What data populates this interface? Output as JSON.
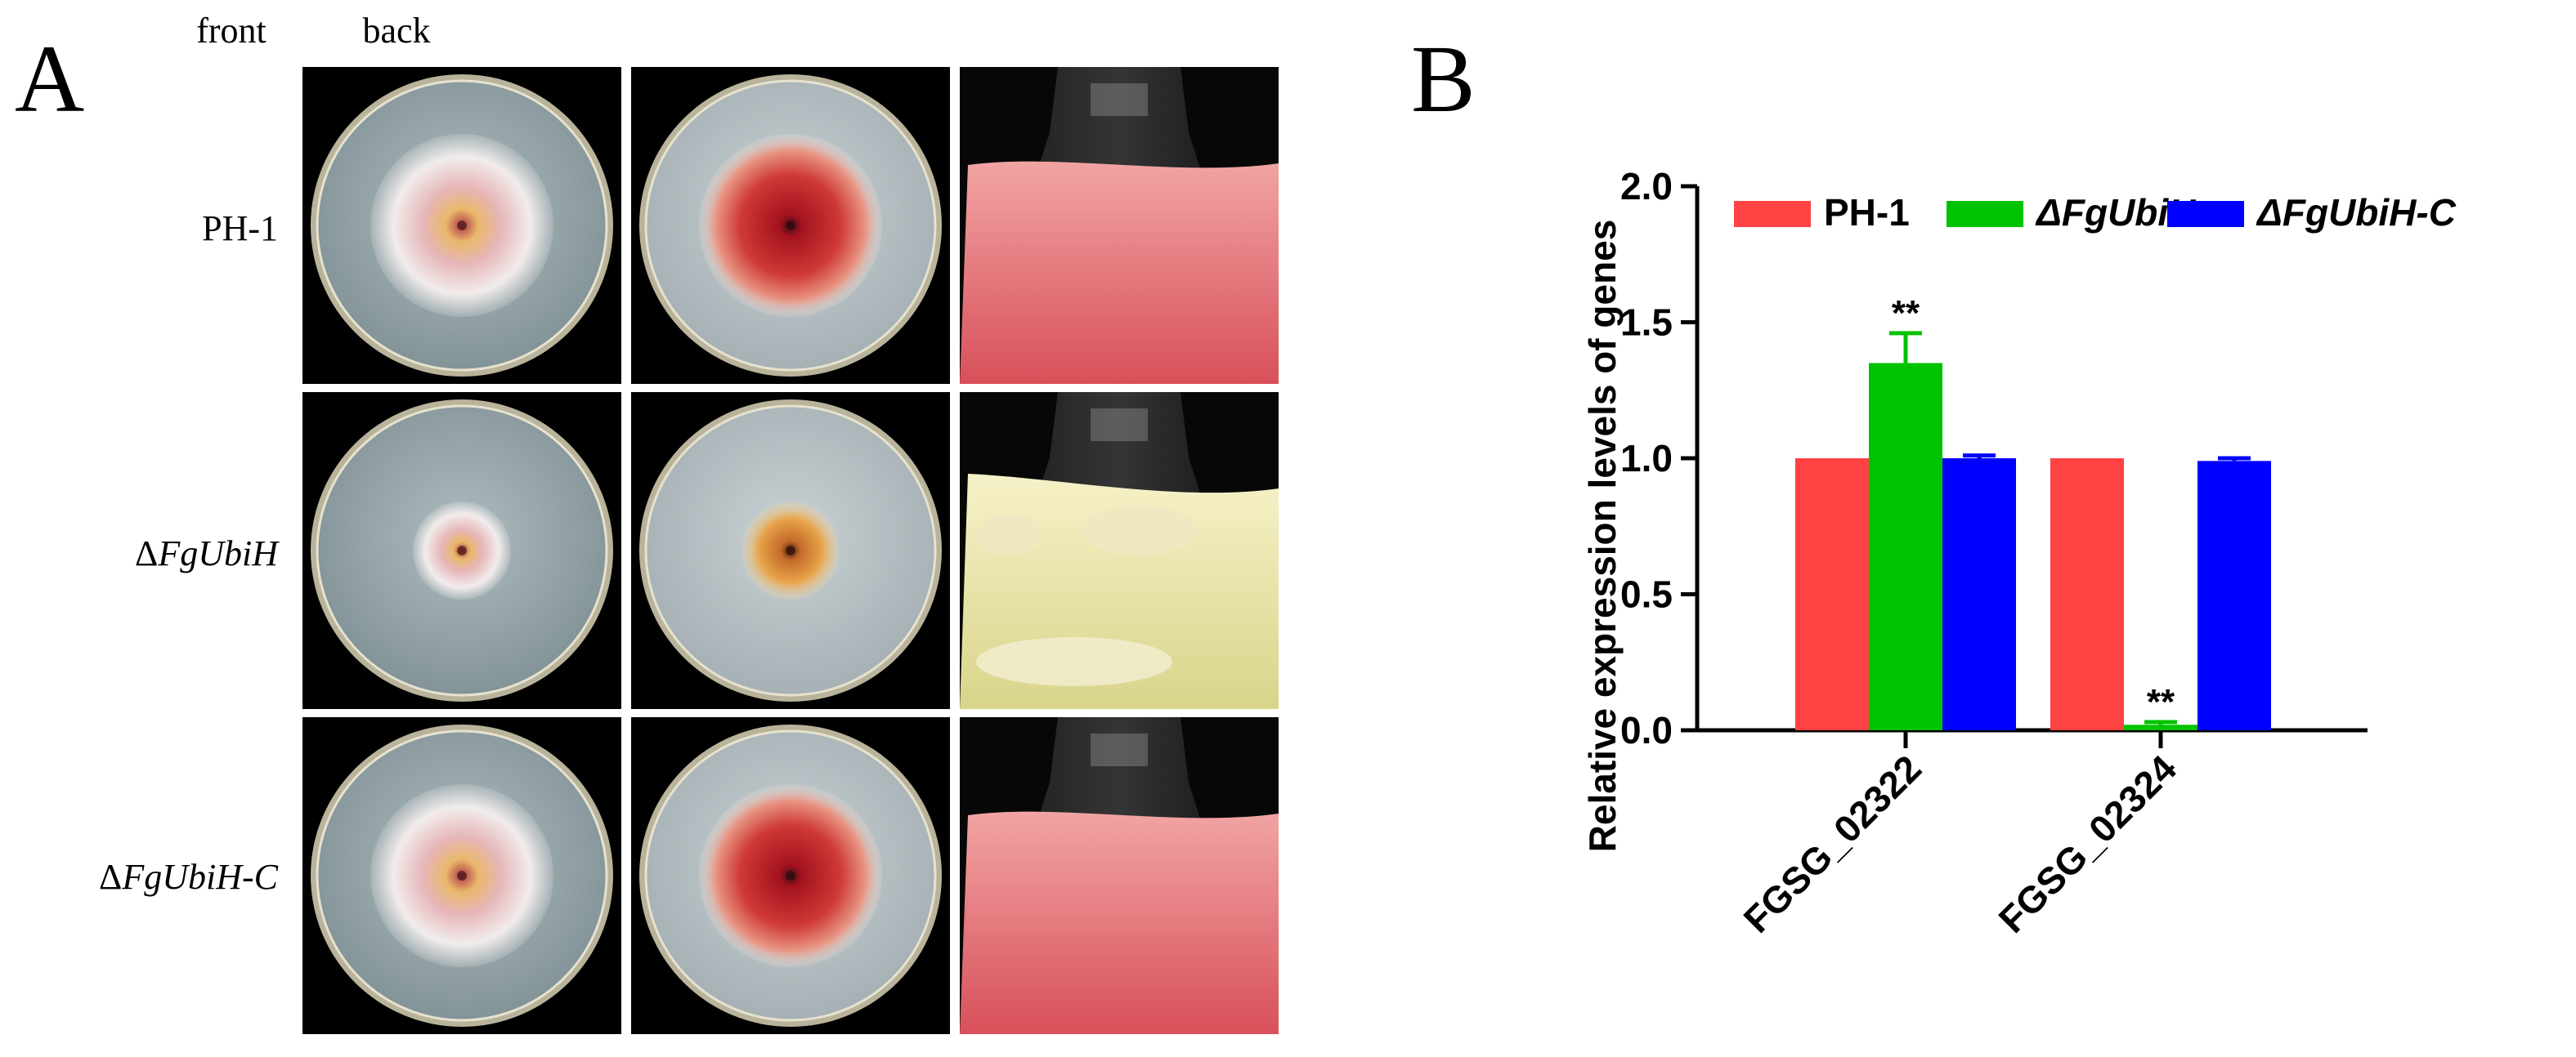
{
  "panelA": {
    "letter": "A",
    "columns": [
      "front",
      "back"
    ],
    "rows": [
      {
        "prefix": "",
        "italic": "",
        "plain": "PH-1"
      },
      {
        "prefix": "Δ",
        "italic": "FgUbiH",
        "plain": ""
      },
      {
        "prefix": "Δ",
        "italic": "FgUbiH-C",
        "plain": ""
      }
    ],
    "photos": [
      {
        "row": 0,
        "kind": "plate-front",
        "growth": "large"
      },
      {
        "row": 0,
        "kind": "plate-back",
        "growth": "large"
      },
      {
        "row": 0,
        "kind": "flask",
        "culture": "red"
      },
      {
        "row": 1,
        "kind": "plate-front",
        "growth": "small"
      },
      {
        "row": 1,
        "kind": "plate-back",
        "growth": "small"
      },
      {
        "row": 1,
        "kind": "flask",
        "culture": "pale-yellow"
      },
      {
        "row": 2,
        "kind": "plate-front",
        "growth": "large"
      },
      {
        "row": 2,
        "kind": "plate-back",
        "growth": "large"
      },
      {
        "row": 2,
        "kind": "flask",
        "culture": "red"
      }
    ]
  },
  "panelB": {
    "letter": "B"
  },
  "chart_data": {
    "type": "bar",
    "ylabel": "Relative expression levels of genes",
    "xlabel": "",
    "categories": [
      "FGSG_02322",
      "FGSG_02324"
    ],
    "ylim": [
      0.0,
      2.0
    ],
    "yticks": [
      "0.0",
      "0.5",
      "1.0",
      "1.5",
      "2.0"
    ],
    "ytick_values": [
      0.0,
      0.5,
      1.0,
      1.5,
      2.0
    ],
    "legend_position": "top",
    "grid": false,
    "series": [
      {
        "name": "PH-1",
        "name_style": "plain",
        "color": "#ff4343",
        "values": [
          1.0,
          1.0
        ],
        "errors": [
          0.0,
          0.0
        ],
        "significance": [
          "",
          ""
        ]
      },
      {
        "name": "ΔFgUbiH",
        "name_style": "italic",
        "color": "#00c300",
        "values": [
          1.35,
          0.02
        ],
        "errors": [
          0.11,
          0.01
        ],
        "significance": [
          "**",
          "**"
        ]
      },
      {
        "name": "ΔFgUbiH-C",
        "name_style": "italic",
        "color": "#0000ff",
        "values": [
          1.0,
          0.99
        ],
        "errors": [
          0.01,
          0.01
        ],
        "significance": [
          "",
          ""
        ]
      }
    ]
  }
}
